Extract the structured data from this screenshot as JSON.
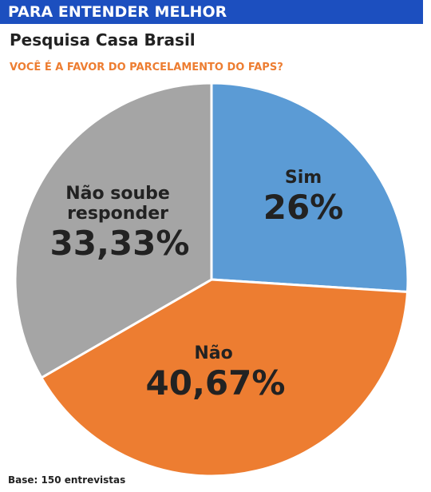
{
  "header": "PARA ENTENDER MELHOR",
  "chart_data": {
    "type": "pie",
    "title": "Pesquisa Casa Brasil",
    "subtitle": "VOCÊ É A FAVOR DO PARCELAMENTO DO FAPS?",
    "categories": [
      "Sim",
      "Não",
      "Não soube responder"
    ],
    "values": [
      26,
      40.67,
      33.33
    ],
    "value_labels": [
      "26%",
      "40,67%",
      "33,33%"
    ],
    "colors": [
      "#5b9bd5",
      "#ed7d31",
      "#a5a5a5"
    ],
    "note": "Base: 150 entrevistas"
  }
}
